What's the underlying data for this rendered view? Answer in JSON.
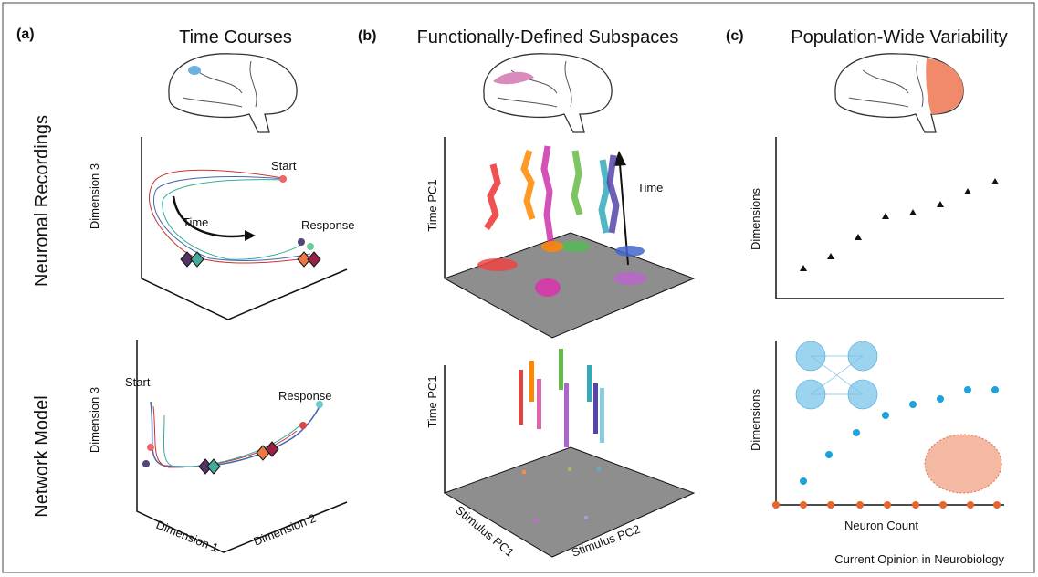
{
  "row_labels": [
    "Neuronal Recordings",
    "Network Model"
  ],
  "panels": [
    {
      "label": "(a)",
      "title": "Time Courses",
      "top": {
        "y_axis": "Dimension 3",
        "annotations": [
          "Start",
          "Time",
          "Response"
        ]
      },
      "bottom": {
        "y_axis": "Dimension 3",
        "x_axes": [
          "Dimension 1",
          "Dimension 2"
        ],
        "annotations": [
          "Start",
          "Response"
        ]
      }
    },
    {
      "label": "(b)",
      "title": "Functionally-Defined Subspaces",
      "top": {
        "y_axis": "Time PC1",
        "annotations": [
          "Time"
        ]
      },
      "bottom": {
        "y_axis": "Time PC1",
        "x_axes": [
          "Stimulus PC1",
          "Stimulus PC2"
        ]
      }
    },
    {
      "label": "(c)",
      "title": "Population-Wide Variability",
      "top": {
        "y_axis": "Dimensions"
      },
      "bottom": {
        "y_axis": "Dimensions",
        "x_axis": "Neuron Count"
      }
    }
  ],
  "footer": "Current Opinion in Neurobiology"
}
